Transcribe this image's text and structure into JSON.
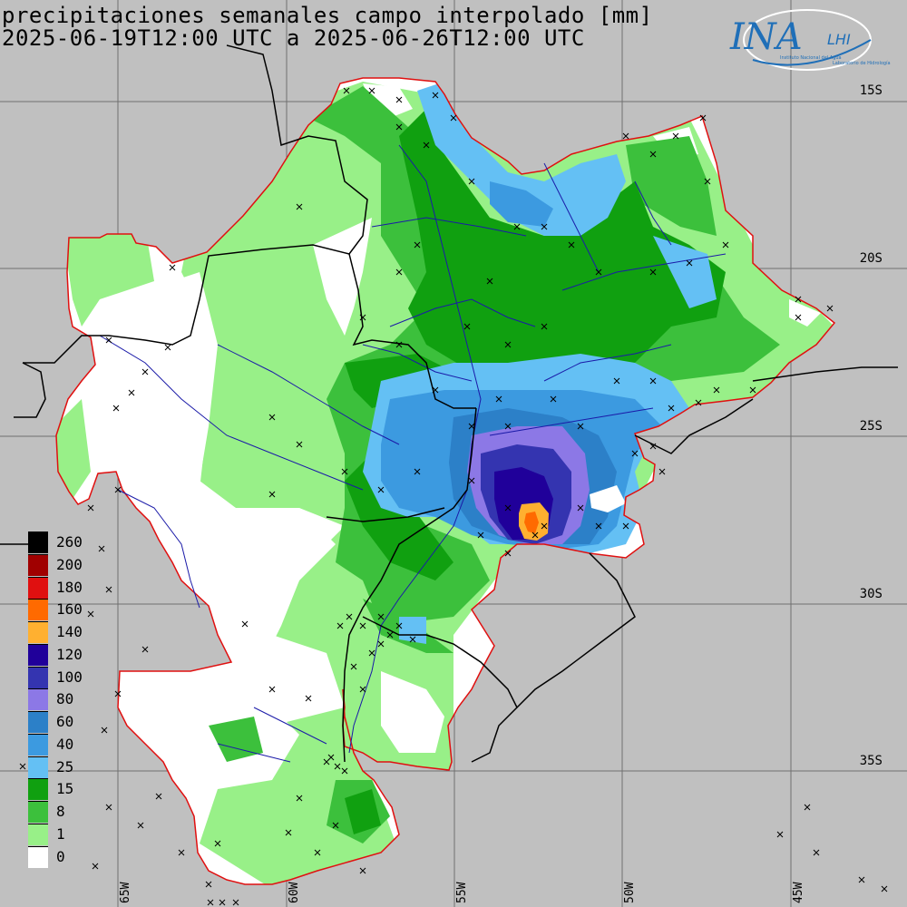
{
  "title": {
    "line1": "precipitaciones semanales campo interpolado [mm]",
    "line2": "2025-06-19T12:00 UTC a 2025-06-26T12:00 UTC"
  },
  "logo": {
    "main": "INA",
    "secondary": "LHI",
    "caption_left": "Instituto Nacional del Agua",
    "caption_right": "Laboratorio de Hidrología"
  },
  "latitude_labels": [
    "15S",
    "20S",
    "25S",
    "30S",
    "35S"
  ],
  "longitude_labels": [
    "65W",
    "60W",
    "55W",
    "50W",
    "45W"
  ],
  "legend": [
    {
      "label": "260",
      "color": "#000000"
    },
    {
      "label": "200",
      "color": "#a00000"
    },
    {
      "label": "180",
      "color": "#e01010"
    },
    {
      "label": "160",
      "color": "#ff6a00"
    },
    {
      "label": "140",
      "color": "#ffb030"
    },
    {
      "label": "120",
      "color": "#20009a"
    },
    {
      "label": "100",
      "color": "#3434b0"
    },
    {
      "label": "80",
      "color": "#8c78e6"
    },
    {
      "label": "60",
      "color": "#2c80c8"
    },
    {
      "label": "40",
      "color": "#3c9ae0"
    },
    {
      "label": "25",
      "color": "#64c0f4"
    },
    {
      "label": "15",
      "color": "#10a010"
    },
    {
      "label": "8",
      "color": "#3cc03c"
    },
    {
      "label": "1",
      "color": "#98f088"
    },
    {
      "label": "0",
      "color": "#ffffff"
    }
  ],
  "colors": {
    "background": "#c0c0c0",
    "basin_outline": "#e01010",
    "rivers": "#1a1aa8",
    "borders": "#000000",
    "grid": "#666666"
  }
}
